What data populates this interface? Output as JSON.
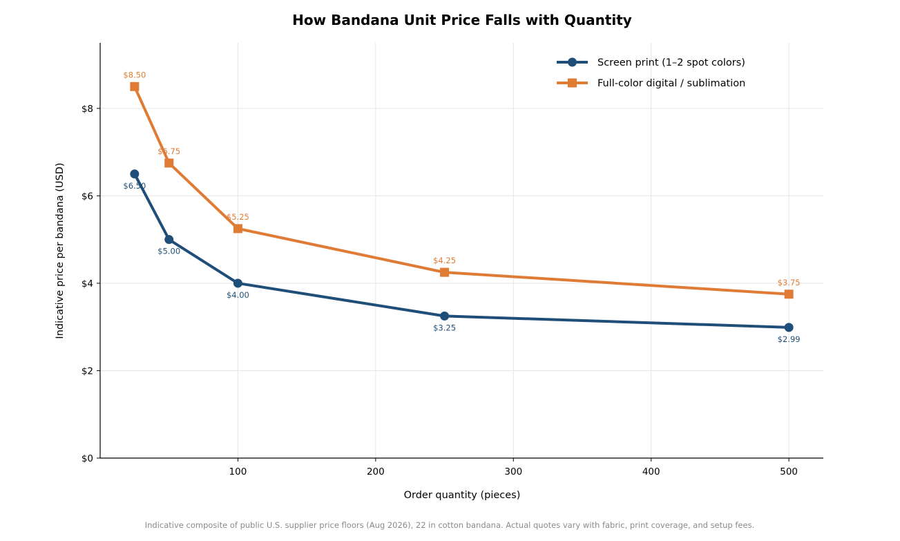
{
  "chart_data": {
    "type": "line",
    "title": "How Bandana Unit Price Falls with Quantity",
    "xlabel": "Order quantity (pieces)",
    "ylabel": "Indicative price per bandana (USD)",
    "x": [
      25,
      50,
      100,
      250,
      500
    ],
    "xlim": [
      0,
      525
    ],
    "ylim": [
      0,
      9.5
    ],
    "x_ticks": [
      {
        "value": 100,
        "label": "100"
      },
      {
        "value": 200,
        "label": "200"
      },
      {
        "value": 300,
        "label": "300"
      },
      {
        "value": 400,
        "label": "400"
      },
      {
        "value": 500,
        "label": "500"
      }
    ],
    "y_ticks": [
      {
        "value": 0,
        "label": "$0"
      },
      {
        "value": 2,
        "label": "$2"
      },
      {
        "value": 4,
        "label": "$4"
      },
      {
        "value": 6,
        "label": "$6"
      },
      {
        "value": 8,
        "label": "$8"
      }
    ],
    "grid": true,
    "legend_position": "top-right",
    "series": [
      {
        "name": "Screen print (1–2 spot colors)",
        "values": [
          6.5,
          5.0,
          4.0,
          3.25,
          2.99
        ],
        "labels": [
          "$6.50",
          "$5.00",
          "$4.00",
          "$3.25",
          "$2.99"
        ],
        "color": "#1f4e79",
        "marker": "circle",
        "label_position": "below"
      },
      {
        "name": "Full-color digital / sublimation",
        "values": [
          8.5,
          6.75,
          5.25,
          4.25,
          3.75
        ],
        "labels": [
          "$8.50",
          "$6.75",
          "$5.25",
          "$4.25",
          "$3.75"
        ],
        "color": "#e07b35",
        "marker": "square",
        "label_position": "above"
      }
    ],
    "footnote": "Indicative composite of public U.S. supplier price floors (Aug 2026), 22 in cotton bandana. Actual quotes vary with fabric, print coverage, and setup fees."
  }
}
